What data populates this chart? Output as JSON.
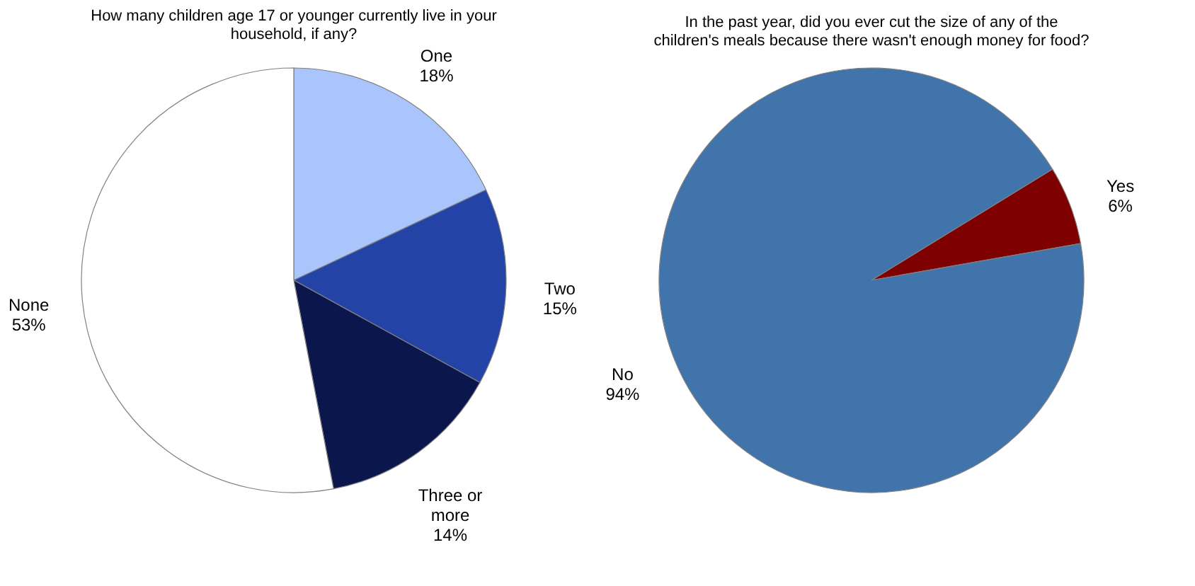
{
  "chart_data": [
    {
      "type": "pie",
      "title": "How many children age 17 or younger currently live in your household, if any?",
      "categories": [
        "One",
        "Two",
        "Three or more",
        "None"
      ],
      "values": [
        18,
        15,
        14,
        53
      ],
      "colors": [
        "#a9c5fb",
        "#2443a7",
        "#0b174c",
        "#ffffff"
      ],
      "value_labels": [
        "18%",
        "15%",
        "14%",
        "53%"
      ],
      "legend": false
    },
    {
      "type": "pie",
      "title": "In the past year, did you ever cut the size of any of the children's meals because there wasn't enough money for food?",
      "categories": [
        "Yes",
        "No"
      ],
      "values": [
        6,
        94
      ],
      "colors": [
        "#7f0000",
        "#4274ac"
      ],
      "value_labels": [
        "6%",
        "94%"
      ],
      "legend": false
    }
  ]
}
